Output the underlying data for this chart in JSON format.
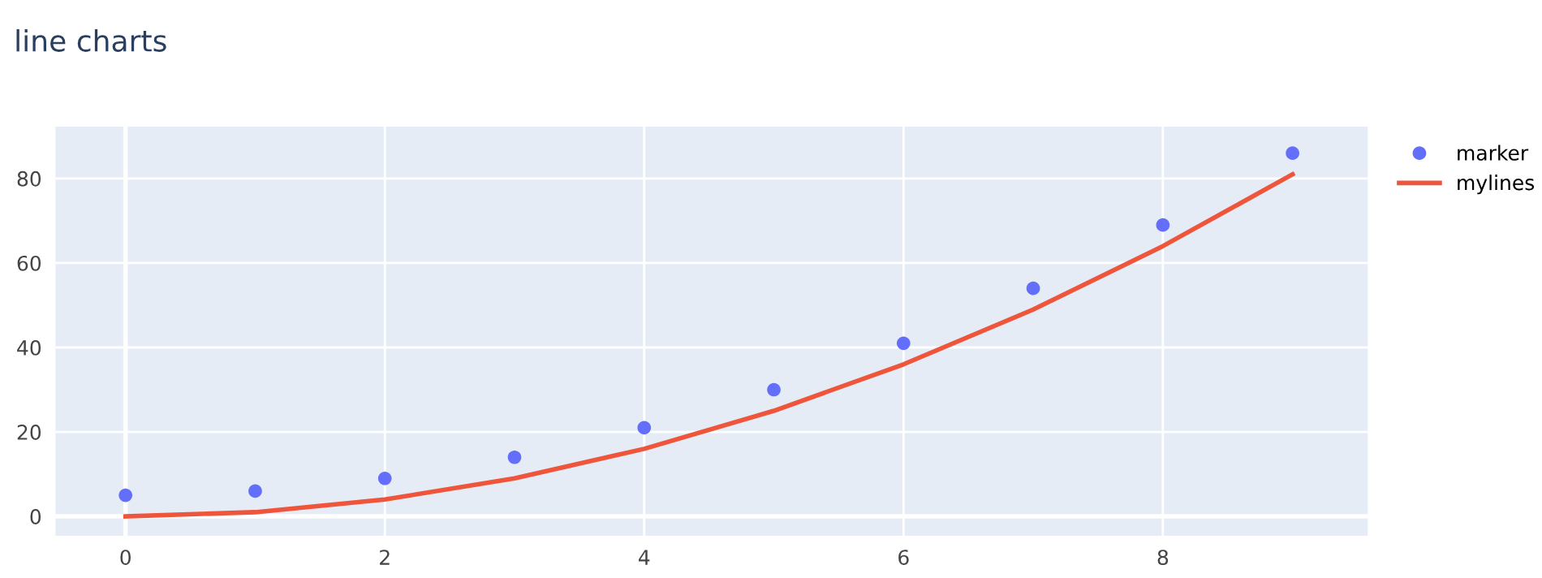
{
  "chart_data": {
    "type": "line",
    "title": "line charts",
    "x": [
      0,
      1,
      2,
      3,
      4,
      5,
      6,
      7,
      8,
      9
    ],
    "series": [
      {
        "name": "marker",
        "type": "scatter",
        "marker": "circle",
        "color": "#636efa",
        "values": [
          5,
          6,
          9,
          14,
          21,
          30,
          41,
          54,
          69,
          86
        ]
      },
      {
        "name": "mylines",
        "color": "#ef553b",
        "values": [
          0,
          1,
          4,
          9,
          16,
          25,
          36,
          49,
          64,
          81
        ]
      }
    ],
    "xlim": [
      -0.54,
      9.58
    ],
    "ylim": [
      -4.6,
      92.3
    ],
    "xticks": [
      0,
      2,
      4,
      6,
      8
    ],
    "yticks": [
      0,
      20,
      40,
      60,
      80
    ],
    "grid": true,
    "legend": "top right"
  }
}
